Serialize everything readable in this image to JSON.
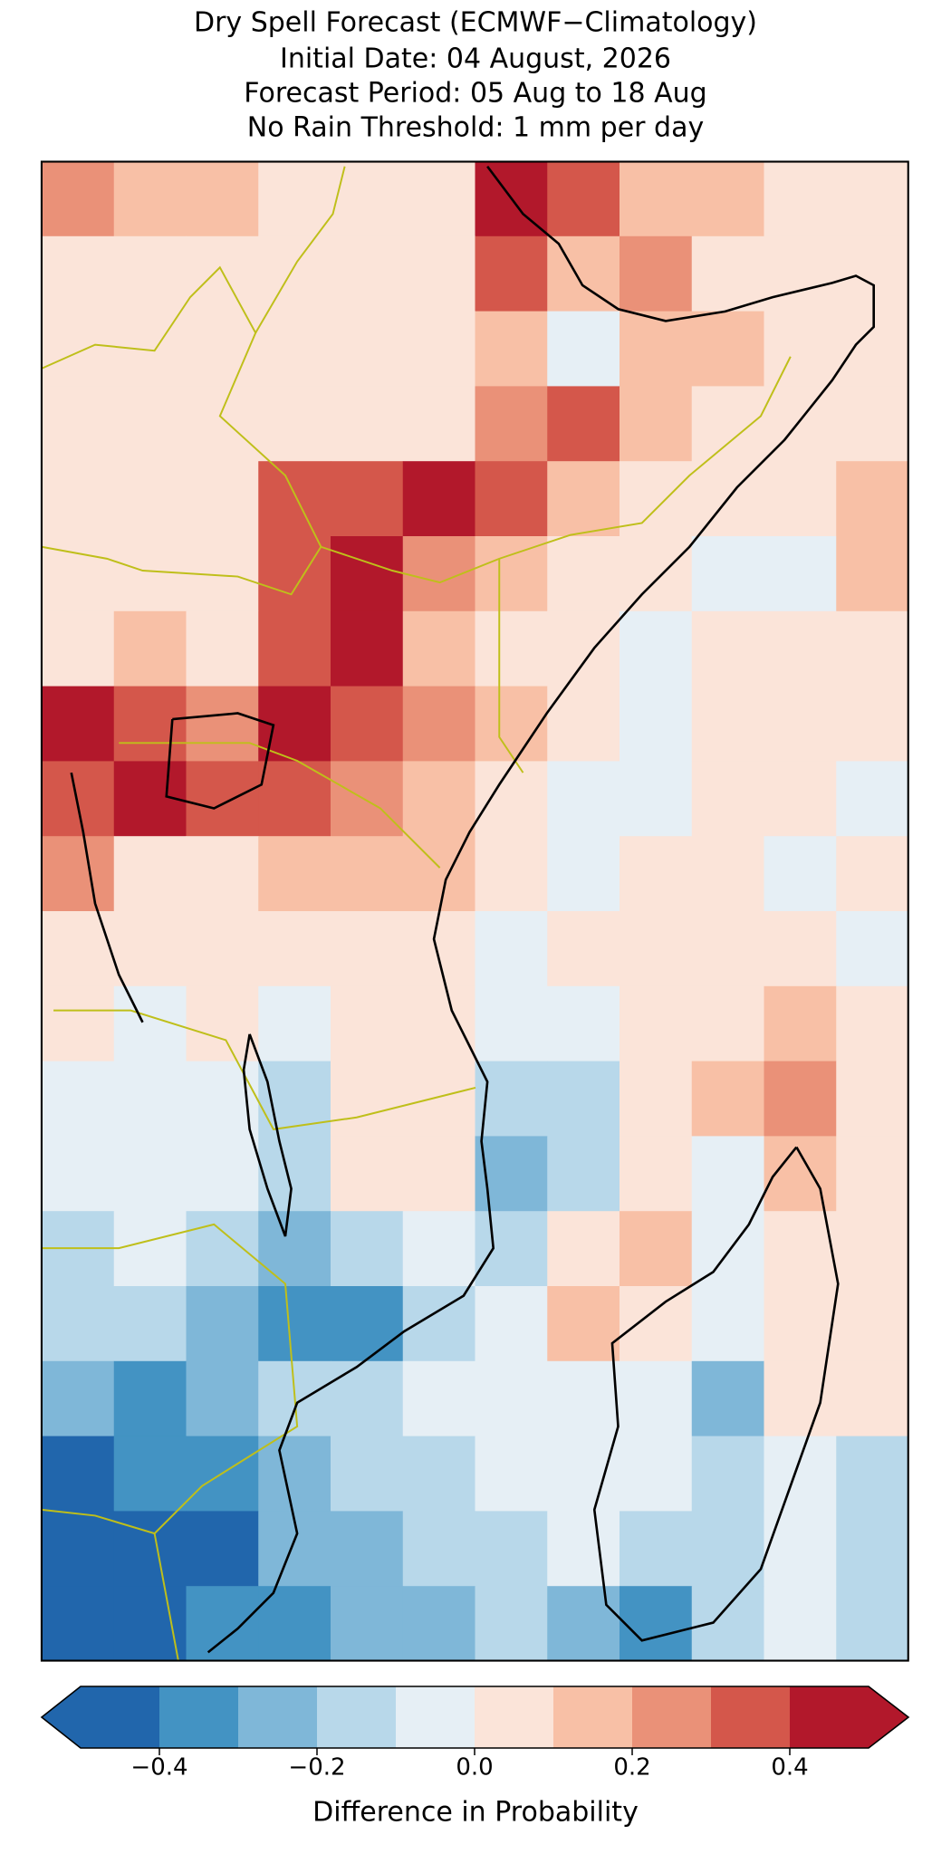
{
  "header": {
    "title_lines": [
      "Dry Spell Forecast (ECMWF−Climatology)",
      "Initial Date: 04 August, 2026",
      "Forecast Period: 05 Aug to 18 Aug",
      "No Rain Threshold: 1 mm per day"
    ]
  },
  "map": {
    "grid": [
      [
        0.2,
        0.15,
        0.1,
        0.05,
        0.05,
        0.05,
        0.4,
        0.3,
        0.1,
        0.1,
        0.05,
        0.05
      ],
      [
        0.05,
        0.05,
        0.05,
        0.05,
        0.05,
        0.05,
        0.3,
        0.1,
        0.2,
        0.05,
        0.05,
        0.05
      ],
      [
        0.05,
        0.05,
        0.05,
        0.05,
        0.05,
        0.05,
        0.1,
        -0.1,
        0.1,
        0.15,
        0.05,
        0.05
      ],
      [
        0.05,
        0.05,
        0.05,
        0.05,
        0.05,
        0.05,
        0.2,
        0.3,
        0.15,
        0.05,
        0.05,
        0.05
      ],
      [
        0.05,
        0.05,
        0.05,
        0.3,
        0.35,
        0.4,
        0.3,
        0.1,
        0.05,
        0.05,
        0.05,
        0.1
      ],
      [
        0.05,
        0.05,
        0.05,
        0.3,
        0.4,
        0.2,
        0.1,
        0.05,
        0.0,
        -0.1,
        -0.1,
        0.1
      ],
      [
        0.05,
        0.1,
        0.05,
        0.3,
        0.4,
        0.1,
        0.05,
        0.0,
        -0.1,
        0.0,
        0.0,
        0.05
      ],
      [
        0.4,
        0.35,
        0.2,
        0.4,
        0.35,
        0.2,
        0.1,
        0.0,
        -0.05,
        0.0,
        0.05,
        0.05
      ],
      [
        0.35,
        0.4,
        0.35,
        0.3,
        0.2,
        0.15,
        0.0,
        -0.05,
        -0.05,
        0.0,
        0.05,
        -0.05
      ],
      [
        0.2,
        0.05,
        0.05,
        0.1,
        0.15,
        0.15,
        0.0,
        -0.05,
        0.0,
        0.0,
        -0.05,
        0.0
      ],
      [
        0.05,
        0.05,
        0.05,
        0.05,
        0.05,
        0.05,
        -0.05,
        0.0,
        0.05,
        0.0,
        0.0,
        -0.05
      ],
      [
        0.0,
        -0.05,
        0.0,
        -0.1,
        0.05,
        0.0,
        -0.1,
        -0.05,
        0.05,
        0.05,
        0.1,
        0.05
      ],
      [
        -0.05,
        -0.1,
        -0.05,
        -0.2,
        0.05,
        0.05,
        -0.2,
        -0.15,
        0.0,
        0.1,
        0.2,
        0.05
      ],
      [
        -0.05,
        -0.1,
        -0.05,
        -0.2,
        0.0,
        0.05,
        -0.3,
        -0.2,
        0.05,
        -0.05,
        0.1,
        0.05
      ],
      [
        -0.15,
        -0.1,
        -0.2,
        -0.3,
        -0.15,
        -0.1,
        -0.2,
        0.05,
        0.1,
        -0.05,
        0.05,
        0.05
      ],
      [
        -0.15,
        -0.2,
        -0.25,
        -0.4,
        -0.35,
        -0.2,
        -0.1,
        0.15,
        0.0,
        -0.1,
        0.05,
        0.05
      ],
      [
        -0.3,
        -0.4,
        -0.3,
        -0.2,
        -0.15,
        -0.1,
        -0.05,
        -0.05,
        -0.05,
        -0.25,
        0.0,
        0.0
      ],
      [
        -0.45,
        -0.4,
        -0.4,
        -0.3,
        -0.2,
        -0.15,
        -0.05,
        -0.05,
        -0.1,
        -0.2,
        -0.1,
        -0.2
      ],
      [
        -0.45,
        -0.45,
        -0.45,
        -0.3,
        -0.25,
        -0.2,
        -0.15,
        -0.1,
        -0.2,
        -0.2,
        -0.1,
        -0.2
      ],
      [
        -0.45,
        -0.45,
        -0.4,
        -0.35,
        -0.3,
        -0.25,
        -0.2,
        -0.3,
        -0.35,
        -0.2,
        -0.1,
        -0.15
      ]
    ]
  },
  "colorbar": {
    "levels": [
      -0.5,
      -0.4,
      -0.3,
      -0.2,
      -0.1,
      0,
      0.1,
      0.2,
      0.3,
      0.4,
      0.5
    ],
    "colors": [
      "#2166ac",
      "#4393c3",
      "#7fb7d8",
      "#b8d8ea",
      "#e6eff5",
      "#fbe4d9",
      "#f8c0a6",
      "#ea9178",
      "#d4574b",
      "#b2182b"
    ],
    "ticks": [
      {
        "value": -0.4,
        "label": "−0.4"
      },
      {
        "value": -0.2,
        "label": "−0.2"
      },
      {
        "value": 0,
        "label": "0.0"
      },
      0.2,
      0.4
    ],
    "label": "Difference in Probability"
  }
}
